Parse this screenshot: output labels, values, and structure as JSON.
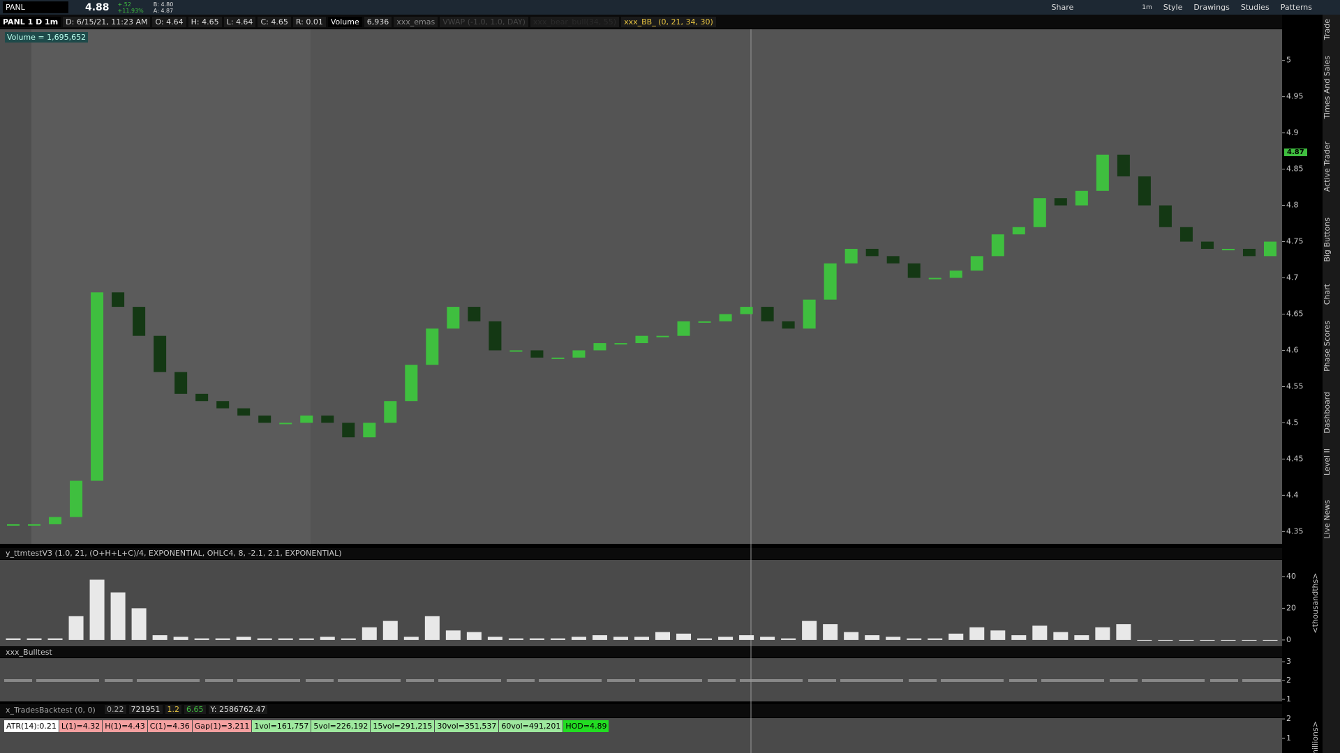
{
  "toolbar": {
    "symbol": "PANL",
    "last": "4.88",
    "change": "+.52",
    "change_pct": "+11.93%",
    "bid": "B: 4.80",
    "ask": "A: 4.87",
    "aggregation": "1m",
    "buttons": [
      "Share",
      "Style",
      "Drawings",
      "Studies",
      "Patterns"
    ]
  },
  "header": {
    "chart_name": "PANL 1 D 1m",
    "date": "D: 6/15/21, 11:23 AM",
    "open": "O: 4.64",
    "high": "H: 4.65",
    "low": "L: 4.64",
    "close": "C: 4.65",
    "range": "R: 0.01",
    "volume_label": "Volume",
    "volume": "6,936",
    "studies": [
      "xxx_emas",
      "VWAP (-1.0, 1.0, DAY)",
      "xxx_bear_bull(34, 55)",
      "xxx_BB_ (0, 21, 34, 30)"
    ]
  },
  "volume_bubble": "Volume = 1,695,652",
  "price_marker": "4.87",
  "side_tabs": [
    "Trade",
    "Times And Sales",
    "Active Trader",
    "Big Buttons",
    "Chart",
    "Phase Scores",
    "Dashboard",
    "Level II",
    "Live News"
  ],
  "chart_data": {
    "type": "candlestick",
    "values": [
      4.36,
      4.36,
      4.37,
      4.42,
      4.68,
      4.66,
      4.62,
      4.57,
      4.54,
      4.53,
      4.52,
      4.51,
      4.5,
      4.5,
      4.51,
      4.5,
      4.48,
      4.5,
      4.53,
      4.58,
      4.63,
      4.66,
      4.64,
      4.6,
      4.6,
      4.59,
      4.59,
      4.6,
      4.61,
      4.61,
      4.62,
      4.62,
      4.64,
      4.64,
      4.65,
      4.66,
      4.64,
      4.63,
      4.67,
      4.72,
      4.74,
      4.73,
      4.72,
      4.7,
      4.7,
      4.71,
      4.73,
      4.76,
      4.77,
      4.81,
      4.8,
      4.82,
      4.87,
      4.84,
      4.8,
      4.77,
      4.75,
      4.74,
      4.74,
      4.73,
      4.75
    ],
    "ylim": [
      4.333,
      5.043
    ],
    "yticks": [
      5,
      4.95,
      4.9,
      4.85,
      4.8,
      4.75,
      4.7,
      4.65,
      4.6,
      4.55,
      4.5,
      4.45,
      4.4,
      4.35
    ],
    "up_color": "#3fbf3f",
    "down_color": "#143814"
  },
  "ttm_panel": {
    "title": "y_ttmtestV3 (1.0, 21, (O+H+L+C)/4, EXPONENTIAL, OHLC4, 8, -2.1, 2.1, EXPONENTIAL)",
    "type": "bar",
    "values": [
      1,
      1,
      1,
      15,
      38,
      30,
      20,
      3,
      2,
      1,
      1,
      2,
      1,
      1,
      1,
      2,
      1,
      8,
      12,
      2,
      15,
      6,
      5,
      2,
      1,
      1,
      1,
      2,
      3,
      2,
      2,
      5,
      4,
      1,
      2,
      3,
      2,
      1,
      12,
      10,
      5,
      3,
      2,
      1,
      1,
      4,
      8,
      6,
      3,
      9,
      5,
      3,
      8,
      10,
      0,
      0,
      0,
      0,
      0,
      0,
      0
    ],
    "ylim": [
      -4,
      50.5
    ],
    "yticks": [
      40,
      20,
      0
    ],
    "color": "#e8e8e8",
    "unit_label": "<thousandths>"
  },
  "bulltest_panel": {
    "title": "xxx_Bulltest",
    "yticks": [
      3,
      2,
      1
    ],
    "ylim": [
      0.89,
      3.19
    ]
  },
  "backtest_panel": {
    "title": "x_TradesBacktest (0, 0)",
    "fields": [
      "0.22",
      "721951",
      "1.2",
      "6.65",
      "Y: 2586762.47"
    ],
    "labels": [
      "ATR(14):0.21",
      "L(1)=4.32",
      "H(1)=4.43",
      "C(1)=4.36",
      "Gap(1)=3.211",
      "1vol=161,757",
      "5vol=226,192",
      "15vol=291,215",
      "30vol=351,537",
      "60vol=491,201",
      "HOD=4.89"
    ],
    "yticks": [
      2,
      1
    ],
    "ylim": [
      0.25,
      2.04
    ],
    "unit_label": "millions>"
  }
}
